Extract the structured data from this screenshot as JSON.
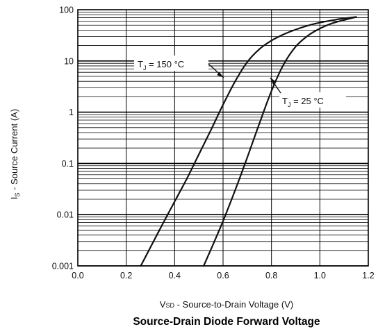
{
  "chart_data": {
    "type": "line",
    "title": "Source-Drain Diode Forward Voltage",
    "xlabel": "VSD - Source-to-Drain Voltage (V)",
    "ylabel": "IS - Source Current (A)",
    "xlim": [
      0.0,
      1.2
    ],
    "ylim": [
      0.001,
      100
    ],
    "y_scale": "log",
    "grid": true,
    "x_ticks": [
      "0.0",
      "0.2",
      "0.4",
      "0.6",
      "0.8",
      "1.0",
      "1.2"
    ],
    "y_ticks": [
      "0.001",
      "0.01",
      "0.1",
      "1",
      "10",
      "100"
    ],
    "series": [
      {
        "name": "TJ = 150 °C",
        "label_main": "T",
        "label_sub": "J",
        "label_rest": " = 150 °C",
        "x": [
          0.26,
          0.3,
          0.35,
          0.4,
          0.45,
          0.5,
          0.55,
          0.6,
          0.65,
          0.7,
          0.75,
          0.8,
          0.85,
          0.9,
          0.95,
          1.0,
          1.05,
          1.1,
          1.15
        ],
        "y": [
          0.001,
          0.0023,
          0.0065,
          0.018,
          0.05,
          0.15,
          0.45,
          1.4,
          4.0,
          9.5,
          17,
          25,
          33,
          41,
          49,
          56,
          62,
          68,
          72
        ]
      },
      {
        "name": "TJ = 25 °C",
        "label_main": "T",
        "label_sub": "J",
        "label_rest": " = 25 °C",
        "x": [
          0.52,
          0.55,
          0.6,
          0.65,
          0.7,
          0.75,
          0.8,
          0.85,
          0.9,
          0.95,
          1.0,
          1.05,
          1.1,
          1.15
        ],
        "y": [
          0.001,
          0.0021,
          0.0075,
          0.03,
          0.13,
          0.6,
          2.6,
          8.5,
          19,
          31,
          43,
          54,
          63,
          72
        ]
      }
    ]
  },
  "labels": {
    "ylabel_main": "I",
    "ylabel_sub": "S",
    "ylabel_rest": " - Source Current (A)",
    "xlabel_main": "V",
    "xlabel_sub": "SD",
    "xlabel_rest": " - Source-to-Drain Voltage (V)"
  }
}
